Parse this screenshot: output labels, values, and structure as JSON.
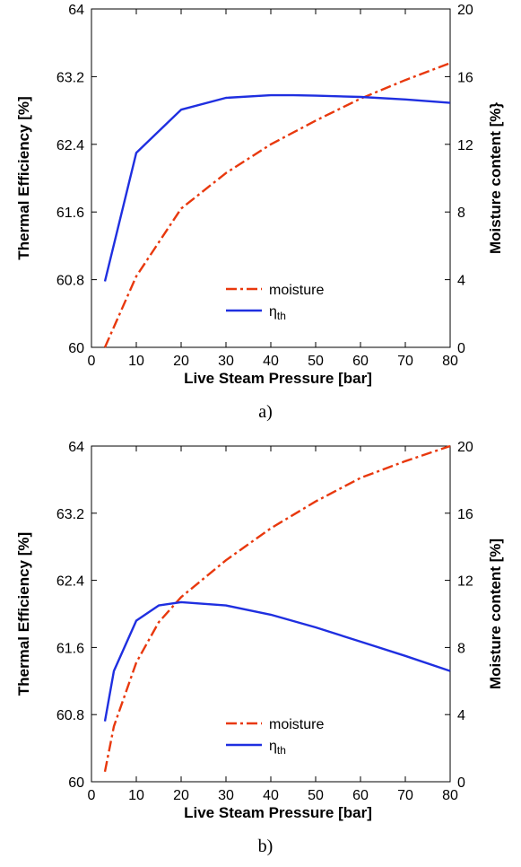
{
  "chart_data": [
    {
      "type": "line",
      "caption": "a)",
      "xlabel": "Live Steam Pressure [bar]",
      "ylabel": "Thermal Efficiency [%]",
      "y2label": "Moisture content [%}",
      "xlim": [
        0,
        80
      ],
      "ylim": [
        60,
        64
      ],
      "y2lim": [
        0,
        20
      ],
      "xticks": [
        0,
        10,
        20,
        30,
        40,
        50,
        60,
        70,
        80
      ],
      "yticks": [
        "60",
        "60.8",
        "61.6",
        "62.4",
        "63.2",
        "64"
      ],
      "y2ticks": [
        0,
        4,
        8,
        12,
        16,
        20
      ],
      "legend_position": "lower-center",
      "series": [
        {
          "name": "moisture",
          "axis": "right",
          "color": "#e8380d",
          "style": "dash-dot",
          "x": [
            3,
            10,
            20,
            30,
            40,
            50,
            60,
            70,
            80
          ],
          "y": [
            0,
            4.2,
            8.2,
            10.3,
            12.0,
            13.4,
            14.7,
            15.8,
            16.8
          ]
        },
        {
          "name": "η",
          "name_subscript": "th",
          "axis": "left",
          "color": "#1f2fe0",
          "style": "solid",
          "x": [
            3,
            10,
            20,
            30,
            40,
            45,
            50,
            60,
            70,
            80
          ],
          "y": [
            60.78,
            62.3,
            62.81,
            62.95,
            62.98,
            62.98,
            62.975,
            62.96,
            62.93,
            62.89
          ]
        }
      ]
    },
    {
      "type": "line",
      "caption": "b)",
      "xlabel": "Live Steam Pressure [bar]",
      "ylabel": "Thermal Efficiency [%]",
      "y2label": "Moisture content [%]",
      "xlim": [
        0,
        80
      ],
      "ylim": [
        60,
        64
      ],
      "y2lim": [
        0,
        20
      ],
      "xticks": [
        0,
        10,
        20,
        30,
        40,
        50,
        60,
        70,
        80
      ],
      "yticks": [
        "60",
        "60.8",
        "61.6",
        "62.4",
        "63.2",
        "64"
      ],
      "y2ticks": [
        0,
        4,
        8,
        12,
        16,
        20
      ],
      "legend_position": "lower-center",
      "series": [
        {
          "name": "moisture",
          "axis": "right",
          "color": "#e8380d",
          "style": "dash-dot",
          "x": [
            3,
            5,
            10,
            15,
            20,
            30,
            40,
            50,
            60,
            70,
            80
          ],
          "y": [
            0.6,
            3.3,
            7.1,
            9.5,
            11.0,
            13.2,
            15.1,
            16.7,
            18.1,
            19.1,
            20.0
          ]
        },
        {
          "name": "η",
          "name_subscript": "th",
          "axis": "left",
          "color": "#1f2fe0",
          "style": "solid",
          "x": [
            3,
            5,
            10,
            15,
            20,
            30,
            40,
            50,
            60,
            70,
            80
          ],
          "y": [
            60.72,
            61.32,
            61.92,
            62.1,
            62.14,
            62.1,
            61.99,
            61.84,
            61.67,
            61.5,
            61.32
          ]
        }
      ]
    }
  ]
}
